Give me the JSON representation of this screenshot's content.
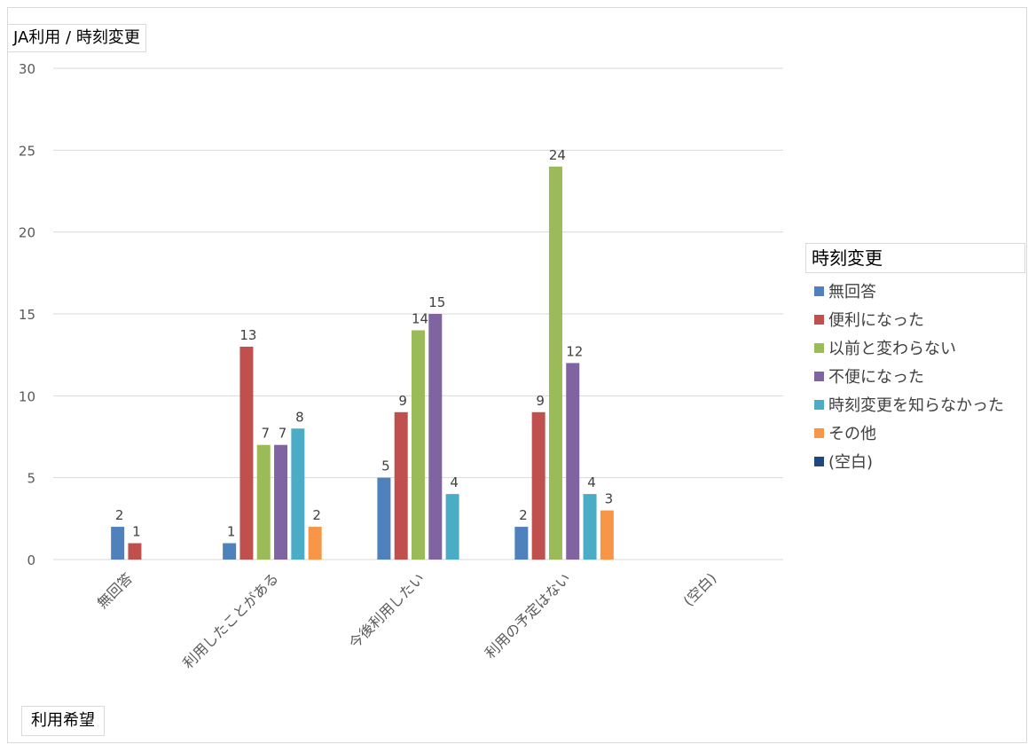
{
  "report_filter": "JA利用 / 時刻変更",
  "axis_field": "利用希望",
  "legend_field": "時刻変更",
  "chart_data": {
    "type": "bar",
    "title": "",
    "xlabel": "",
    "ylabel": "",
    "ylim": [
      0,
      30
    ],
    "yticks": [
      0,
      5,
      10,
      15,
      20,
      25,
      30
    ],
    "grid": true,
    "legend_position": "right",
    "categories": [
      "無回答",
      "利用したことがある",
      "今後利用したい",
      "利用の予定はない",
      "(空白)"
    ],
    "series": [
      {
        "name": "無回答",
        "color": "#4f81bd",
        "values": [
          2,
          1,
          5,
          2,
          null
        ]
      },
      {
        "name": "便利になった",
        "color": "#c0504d",
        "values": [
          1,
          13,
          9,
          9,
          null
        ]
      },
      {
        "name": "以前と変わらない",
        "color": "#9bbb59",
        "values": [
          null,
          7,
          14,
          24,
          null
        ]
      },
      {
        "name": "不便になった",
        "color": "#8064a2",
        "values": [
          null,
          7,
          15,
          12,
          null
        ]
      },
      {
        "name": "時刻変更を知らなかった",
        "color": "#4bacc6",
        "values": [
          null,
          8,
          4,
          4,
          null
        ]
      },
      {
        "name": "その他",
        "color": "#f79646",
        "values": [
          null,
          2,
          null,
          3,
          null
        ]
      },
      {
        "name": "(空白)",
        "color": "#1f497d",
        "values": [
          null,
          null,
          null,
          null,
          null
        ]
      }
    ]
  }
}
